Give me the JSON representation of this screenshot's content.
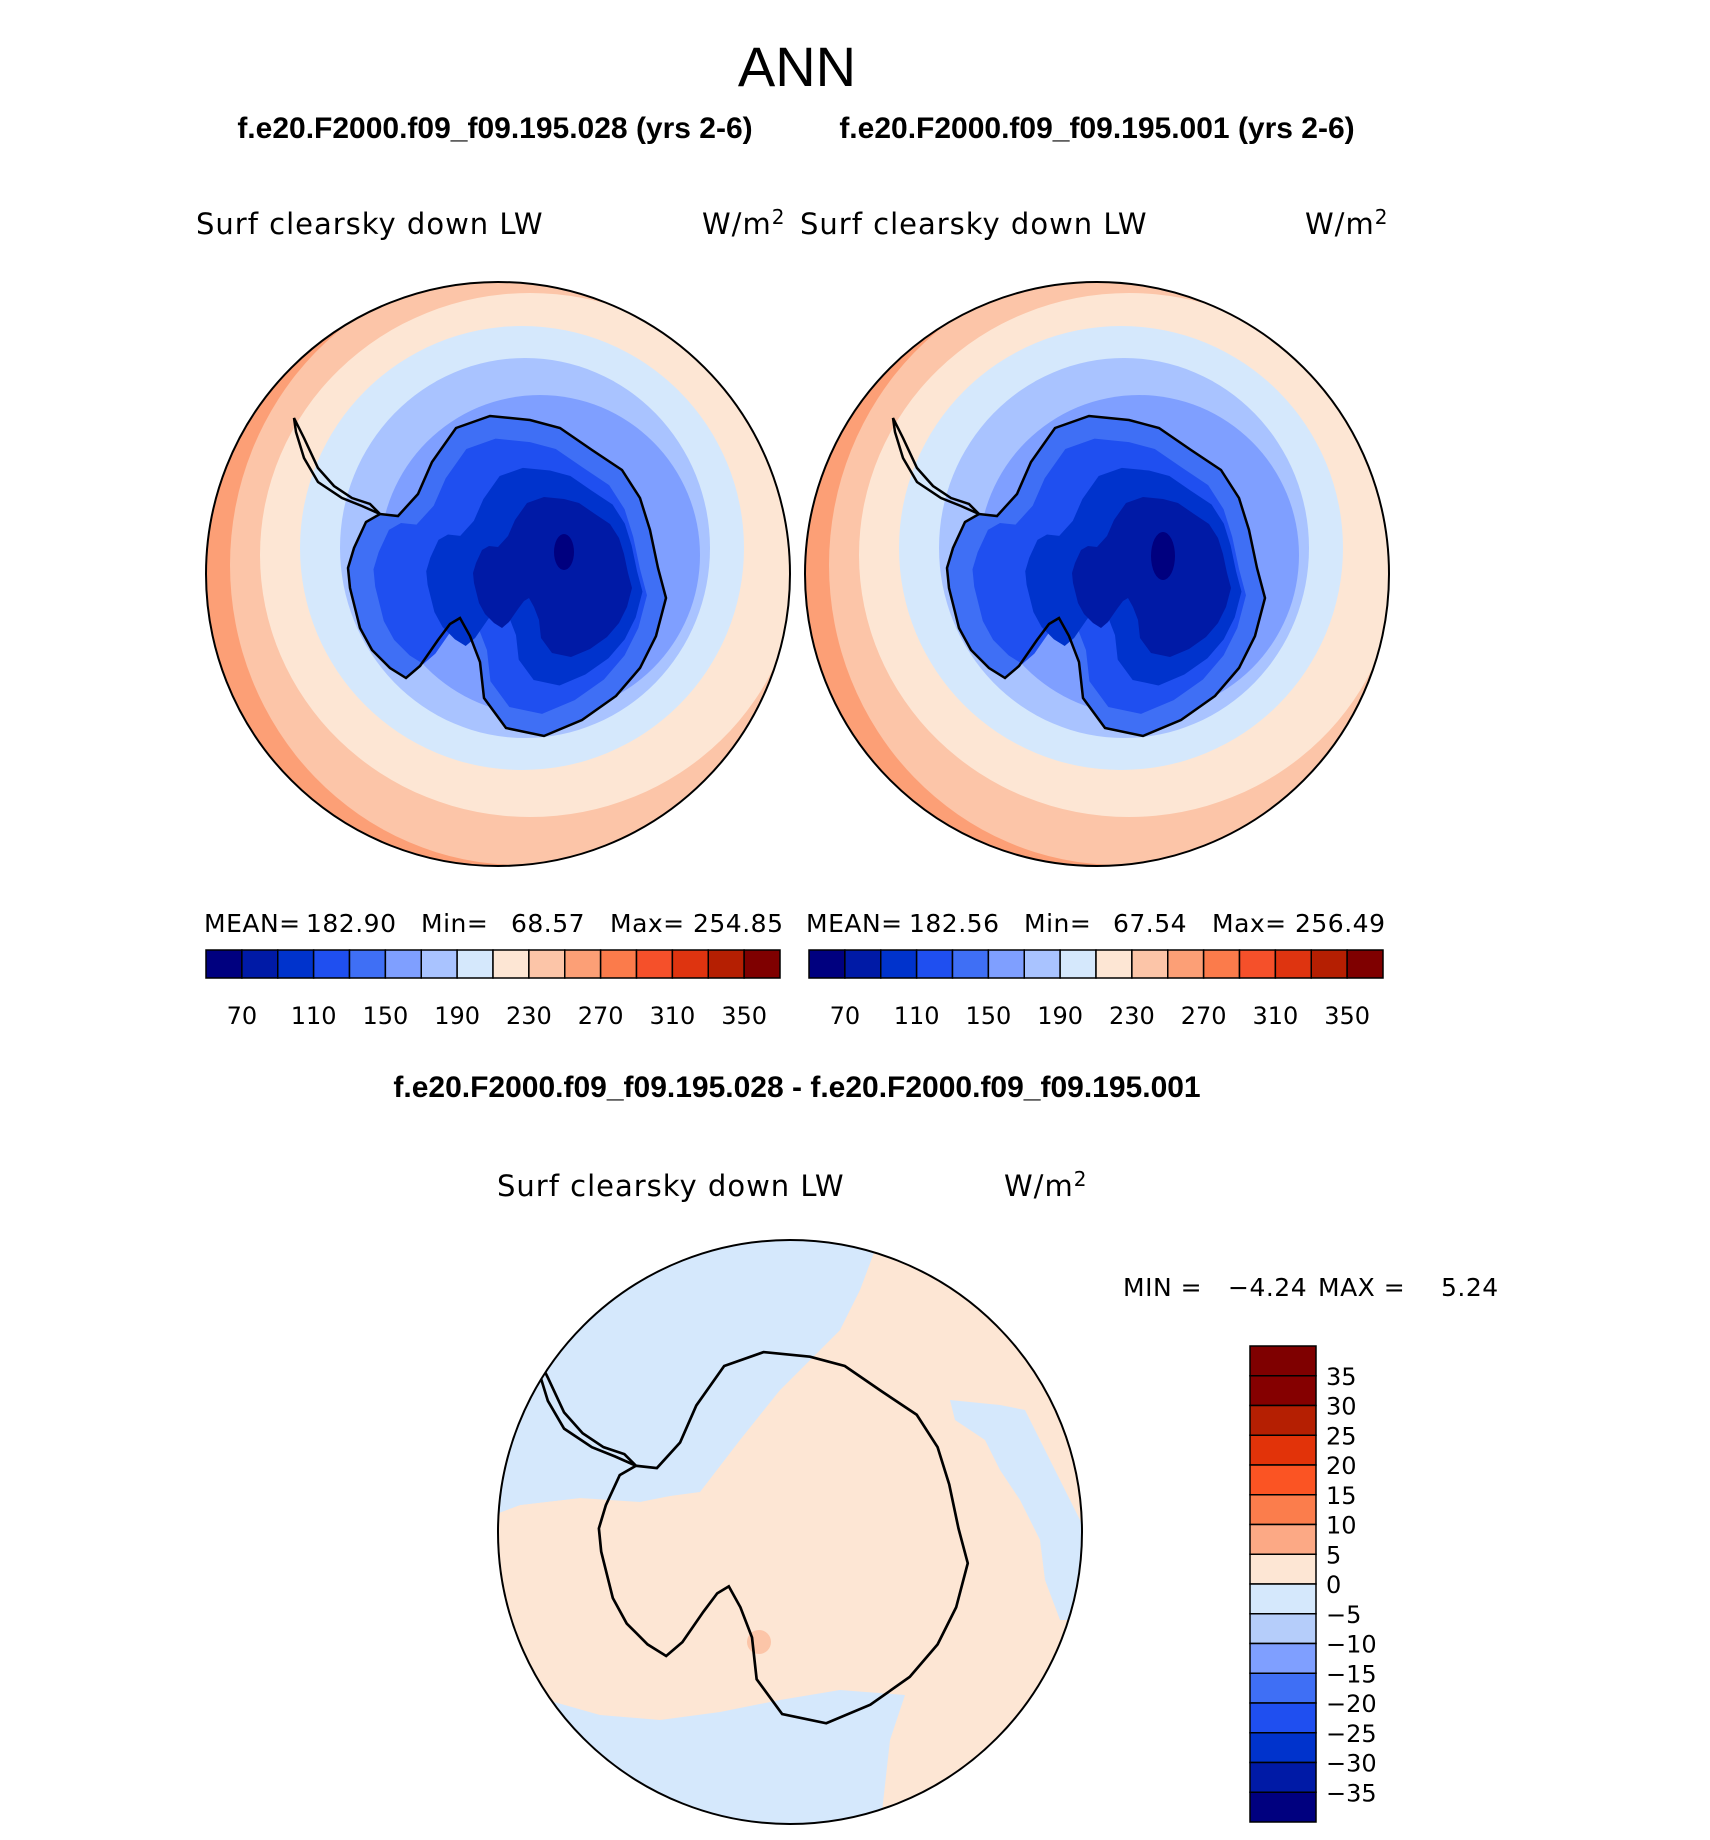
{
  "season": "ANN",
  "panels": [
    {
      "case_title": "f.e20.F2000.f09_f09.195.028 (yrs 2-6)",
      "variable": "Surf clearsky down LW",
      "units": "W/m",
      "units_sup": "2",
      "stats": {
        "mean_label": "MEAN=",
        "mean": "182.90",
        "min_label": "Min=",
        "min": "68.57",
        "max_label": "Max=",
        "max": "254.85"
      }
    },
    {
      "case_title": "f.e20.F2000.f09_f09.195.001 (yrs 2-6)",
      "variable": "Surf clearsky down LW",
      "units": "W/m",
      "units_sup": "2",
      "stats": {
        "mean_label": "MEAN=",
        "mean": "182.56",
        "min_label": "Min=",
        "min": "67.54",
        "max_label": "Max=",
        "max": "256.49"
      }
    }
  ],
  "diff": {
    "title": "f.e20.F2000.f09_f09.195.028 - f.e20.F2000.f09_f09.195.001",
    "variable": "Surf clearsky down LW",
    "units": "W/m",
    "units_sup": "2",
    "stats": {
      "min_label": "MIN =",
      "min": "−4.24",
      "max_label": "MAX =",
      "max": "5.24"
    }
  },
  "colors": {
    "abs_scale": [
      "#00007f",
      "#001aa6",
      "#0033cc",
      "#1f4ff0",
      "#3f6ff5",
      "#7f9fff",
      "#a9c3ff",
      "#d5e8fc",
      "#fde6d4",
      "#fcc5a8",
      "#fc9f76",
      "#fb7b4b",
      "#f5502a",
      "#de3410",
      "#b51f02",
      "#7f0000"
    ],
    "diff_scale": [
      "#00007f",
      "#001aa6",
      "#0033cc",
      "#1f4ff0",
      "#3f6ff5",
      "#7f9fff",
      "#b5cdfa",
      "#d5e8fc",
      "#fde6d4",
      "#fca985",
      "#fb7d4c",
      "#fb5423",
      "#e23309",
      "#b51f02",
      "#850000"
    ],
    "coast": "#000000"
  },
  "chart_data": [
    {
      "type": "heatmap",
      "projection": "south polar stereographic",
      "title": "Surf clearsky down LW",
      "units": "W/m2",
      "stats": {
        "mean": 182.9,
        "min": 68.57,
        "max": 254.85
      },
      "colorbar_ticks": [
        "70",
        "110",
        "150",
        "190",
        "230",
        "270",
        "310",
        "350"
      ],
      "contour_levels": [
        70,
        90,
        110,
        130,
        150,
        170,
        190,
        210,
        230,
        250,
        270,
        290,
        310,
        330,
        350
      ]
    },
    {
      "type": "heatmap",
      "projection": "south polar stereographic",
      "title": "Surf clearsky down LW",
      "units": "W/m2",
      "stats": {
        "mean": 182.56,
        "min": 67.54,
        "max": 256.49
      },
      "colorbar_ticks": [
        "70",
        "110",
        "150",
        "190",
        "230",
        "270",
        "310",
        "350"
      ],
      "contour_levels": [
        70,
        90,
        110,
        130,
        150,
        170,
        190,
        210,
        230,
        250,
        270,
        290,
        310,
        330,
        350
      ]
    },
    {
      "type": "heatmap",
      "projection": "south polar stereographic",
      "title": "Surf clearsky down LW",
      "units": "W/m2",
      "stats": {
        "min": -4.24,
        "max": 5.24
      },
      "colorbar_ticks": [
        "35",
        "30",
        "25",
        "20",
        "15",
        "10",
        "5",
        "0",
        "−5",
        "−10",
        "−15",
        "−20",
        "−25",
        "−30",
        "−35"
      ],
      "contour_levels": [
        -35,
        -30,
        -25,
        -20,
        -15,
        -10,
        -5,
        0,
        5,
        10,
        15,
        20,
        25,
        30,
        35
      ]
    }
  ]
}
